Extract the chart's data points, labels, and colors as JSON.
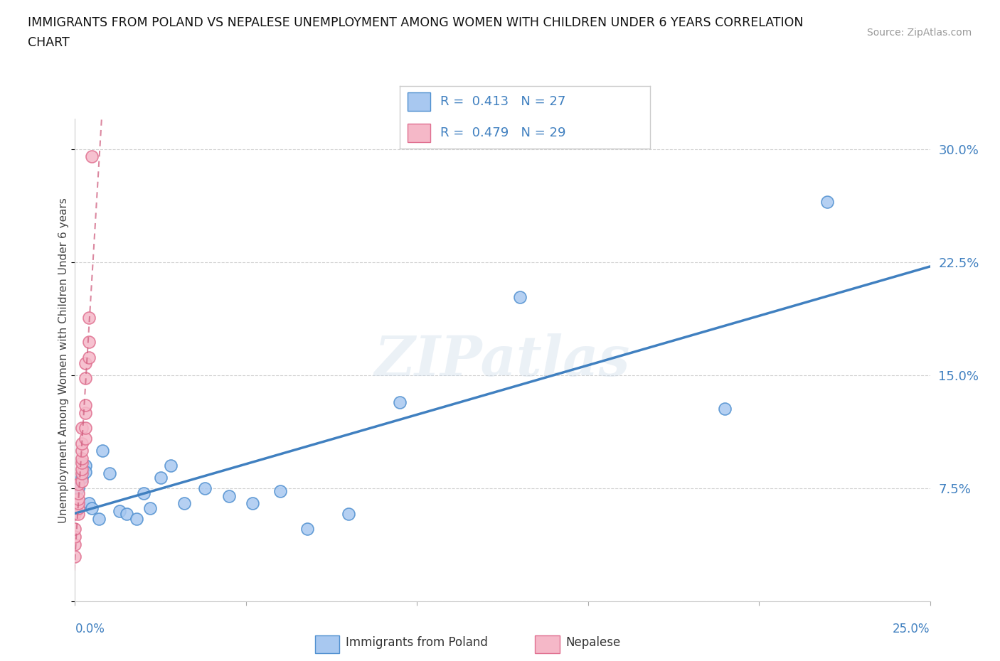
{
  "title_line1": "IMMIGRANTS FROM POLAND VS NEPALESE UNEMPLOYMENT AMONG WOMEN WITH CHILDREN UNDER 6 YEARS CORRELATION",
  "title_line2": "CHART",
  "source": "Source: ZipAtlas.com",
  "ylabel": "Unemployment Among Women with Children Under 6 years",
  "xlim": [
    0.0,
    0.25
  ],
  "ylim": [
    0.0,
    0.32
  ],
  "yticks": [
    0.0,
    0.075,
    0.15,
    0.225,
    0.3
  ],
  "ytick_labels": [
    "",
    "7.5%",
    "15.0%",
    "22.5%",
    "30.0%"
  ],
  "xtick_labels": [
    "0.0%",
    "",
    "",
    "",
    "",
    "25.0%"
  ],
  "grid_color": "#cccccc",
  "background_color": "#ffffff",
  "watermark": "ZIPatlas",
  "legend_R1": "0.413",
  "legend_N1": "27",
  "legend_R2": "0.479",
  "legend_N2": "29",
  "color_poland": "#a8c8f0",
  "color_nepalese": "#f5b8c8",
  "color_poland_edge": "#5090d0",
  "color_nepalese_edge": "#e07090",
  "color_poland_line": "#4080c0",
  "color_nepalese_line": "#d06080",
  "poland_x": [
    0.001,
    0.002,
    0.003,
    0.003,
    0.004,
    0.005,
    0.007,
    0.008,
    0.01,
    0.013,
    0.015,
    0.018,
    0.02,
    0.022,
    0.025,
    0.028,
    0.032,
    0.038,
    0.045,
    0.052,
    0.06,
    0.068,
    0.08,
    0.095,
    0.13,
    0.19,
    0.22
  ],
  "poland_y": [
    0.075,
    0.082,
    0.09,
    0.086,
    0.065,
    0.062,
    0.055,
    0.1,
    0.085,
    0.06,
    0.058,
    0.055,
    0.072,
    0.062,
    0.082,
    0.09,
    0.065,
    0.075,
    0.07,
    0.065,
    0.073,
    0.048,
    0.058,
    0.132,
    0.202,
    0.128,
    0.265
  ],
  "nepalese_x": [
    0.0,
    0.0,
    0.0,
    0.0,
    0.0,
    0.001,
    0.001,
    0.001,
    0.001,
    0.001,
    0.001,
    0.002,
    0.002,
    0.002,
    0.002,
    0.002,
    0.002,
    0.002,
    0.002,
    0.003,
    0.003,
    0.003,
    0.003,
    0.003,
    0.003,
    0.004,
    0.004,
    0.004,
    0.005
  ],
  "nepalese_y": [
    0.03,
    0.038,
    0.043,
    0.048,
    0.058,
    0.058,
    0.062,
    0.065,
    0.068,
    0.072,
    0.078,
    0.08,
    0.085,
    0.088,
    0.092,
    0.095,
    0.1,
    0.105,
    0.115,
    0.108,
    0.115,
    0.125,
    0.13,
    0.148,
    0.158,
    0.162,
    0.172,
    0.188,
    0.295
  ]
}
